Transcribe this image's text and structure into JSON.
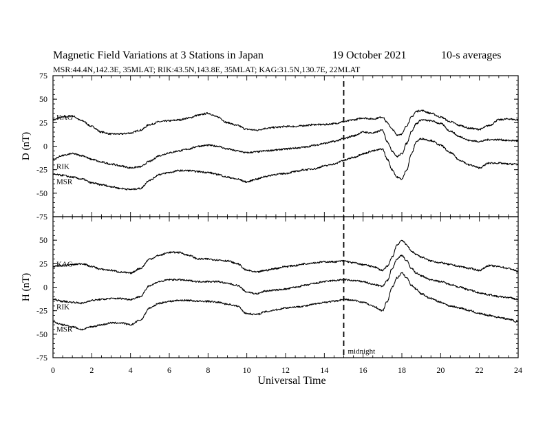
{
  "header": {
    "title": "Magnetic Field Variations at 3 Stations in Japan",
    "date": "19 October 2021",
    "averaging": "10-s averages",
    "stations_line": "MSR:44.4N,142.3E, 35MLAT;  RIK:43.5N,143.8E, 35MLAT;  KAG:31.5N,130.7E, 22MLAT"
  },
  "chart_data": {
    "type": "line",
    "title": "Magnetic Field Variations at 3 Stations in Japan",
    "xlabel": "Universal Time",
    "xlim": [
      0,
      24
    ],
    "x_ticks": [
      "0",
      "2",
      "4",
      "6",
      "8",
      "10",
      "12",
      "14",
      "16",
      "18",
      "20",
      "22",
      "24"
    ],
    "annotation": {
      "x": 15,
      "label": "midnight",
      "style": "dashed vertical line"
    },
    "x": [
      0,
      0.5,
      1,
      1.5,
      2,
      2.5,
      3,
      3.5,
      4,
      4.5,
      5,
      5.5,
      6,
      6.5,
      7,
      7.5,
      8,
      8.5,
      9,
      9.5,
      10,
      10.5,
      11,
      11.5,
      12,
      12.5,
      13,
      13.5,
      14,
      14.5,
      15,
      15.5,
      16,
      16.5,
      17,
      17.25,
      17.5,
      17.75,
      18,
      18.25,
      18.5,
      18.75,
      19,
      19.5,
      20,
      20.5,
      21,
      21.5,
      22,
      22.5,
      23,
      23.5,
      24
    ],
    "panels": [
      {
        "ylabel": "D (nT)",
        "ylim": [
          -75,
          75
        ],
        "y_ticks": [
          "75",
          "50",
          "25",
          "0",
          "-25",
          "-50",
          "-75"
        ],
        "series": [
          {
            "name": "KAG",
            "values": [
              28,
              31,
              32,
              27,
              21,
              15,
              13,
              13,
              14,
              17,
              23,
              26,
              27,
              28,
              30,
              33,
              35,
              31,
              25,
              22,
              18,
              17,
              19,
              20,
              21,
              21,
              22,
              23,
              23,
              24,
              26,
              28,
              30,
              29,
              31,
              25,
              18,
              12,
              13,
              22,
              31,
              37,
              38,
              35,
              31,
              26,
              22,
              19,
              18,
              22,
              28,
              29,
              28
            ]
          },
          {
            "name": "RIK",
            "values": [
              -14,
              -10,
              -8,
              -10,
              -14,
              -17,
              -19,
              -21,
              -23,
              -22,
              -16,
              -10,
              -7,
              -5,
              -3,
              0,
              1,
              0,
              -3,
              -5,
              -7,
              -6,
              -5,
              -4,
              -3,
              -2,
              -1,
              1,
              3,
              5,
              8,
              11,
              15,
              14,
              17,
              5,
              -5,
              -11,
              -8,
              3,
              16,
              24,
              28,
              27,
              24,
              16,
              10,
              6,
              5,
              7,
              7,
              6,
              6
            ]
          },
          {
            "name": "MSR",
            "values": [
              -30,
              -31,
              -33,
              -35,
              -39,
              -41,
              -43,
              -45,
              -46,
              -45,
              -36,
              -30,
              -28,
              -26,
              -26,
              -27,
              -28,
              -30,
              -33,
              -35,
              -38,
              -35,
              -32,
              -30,
              -29,
              -27,
              -25,
              -24,
              -21,
              -19,
              -15,
              -12,
              -8,
              -5,
              -3,
              -14,
              -25,
              -33,
              -35,
              -25,
              -8,
              5,
              8,
              6,
              1,
              -7,
              -15,
              -20,
              -23,
              -18,
              -18,
              -19,
              -19
            ]
          }
        ]
      },
      {
        "ylabel": "H (nT)",
        "ylim": [
          -75,
          75
        ],
        "y_ticks": [
          "50",
          "25",
          "0",
          "-25",
          "-50",
          "-75"
        ],
        "series": [
          {
            "name": "KAG",
            "values": [
              22,
              23,
              24,
              25,
              22,
              19,
              18,
              16,
              15,
              20,
              30,
              34,
              37,
              37,
              34,
              30,
              30,
              29,
              28,
              25,
              18,
              16,
              18,
              20,
              22,
              23,
              25,
              26,
              27,
              27,
              28,
              26,
              24,
              22,
              18,
              22,
              32,
              45,
              50,
              45,
              38,
              35,
              32,
              28,
              26,
              24,
              22,
              20,
              18,
              23,
              22,
              20,
              17
            ]
          },
          {
            "name": "RIK",
            "values": [
              -13,
              -15,
              -16,
              -17,
              -14,
              -13,
              -12,
              -12,
              -13,
              -10,
              2,
              6,
              8,
              8,
              7,
              6,
              6,
              6,
              4,
              2,
              -5,
              -7,
              -4,
              -3,
              -2,
              0,
              2,
              4,
              6,
              7,
              8,
              7,
              6,
              3,
              1,
              7,
              20,
              30,
              34,
              28,
              20,
              15,
              12,
              8,
              6,
              3,
              0,
              -3,
              -6,
              -8,
              -10,
              -11,
              -13
            ]
          },
          {
            "name": "MSR",
            "values": [
              -37,
              -40,
              -42,
              -45,
              -42,
              -40,
              -38,
              -38,
              -40,
              -35,
              -22,
              -17,
              -15,
              -14,
              -14,
              -15,
              -15,
              -16,
              -18,
              -20,
              -28,
              -29,
              -26,
              -24,
              -22,
              -21,
              -20,
              -18,
              -16,
              -15,
              -13,
              -14,
              -16,
              -20,
              -25,
              -15,
              0,
              10,
              15,
              10,
              2,
              -2,
              -7,
              -12,
              -16,
              -20,
              -22,
              -25,
              -28,
              -30,
              -32,
              -34,
              -37
            ]
          }
        ]
      }
    ]
  }
}
